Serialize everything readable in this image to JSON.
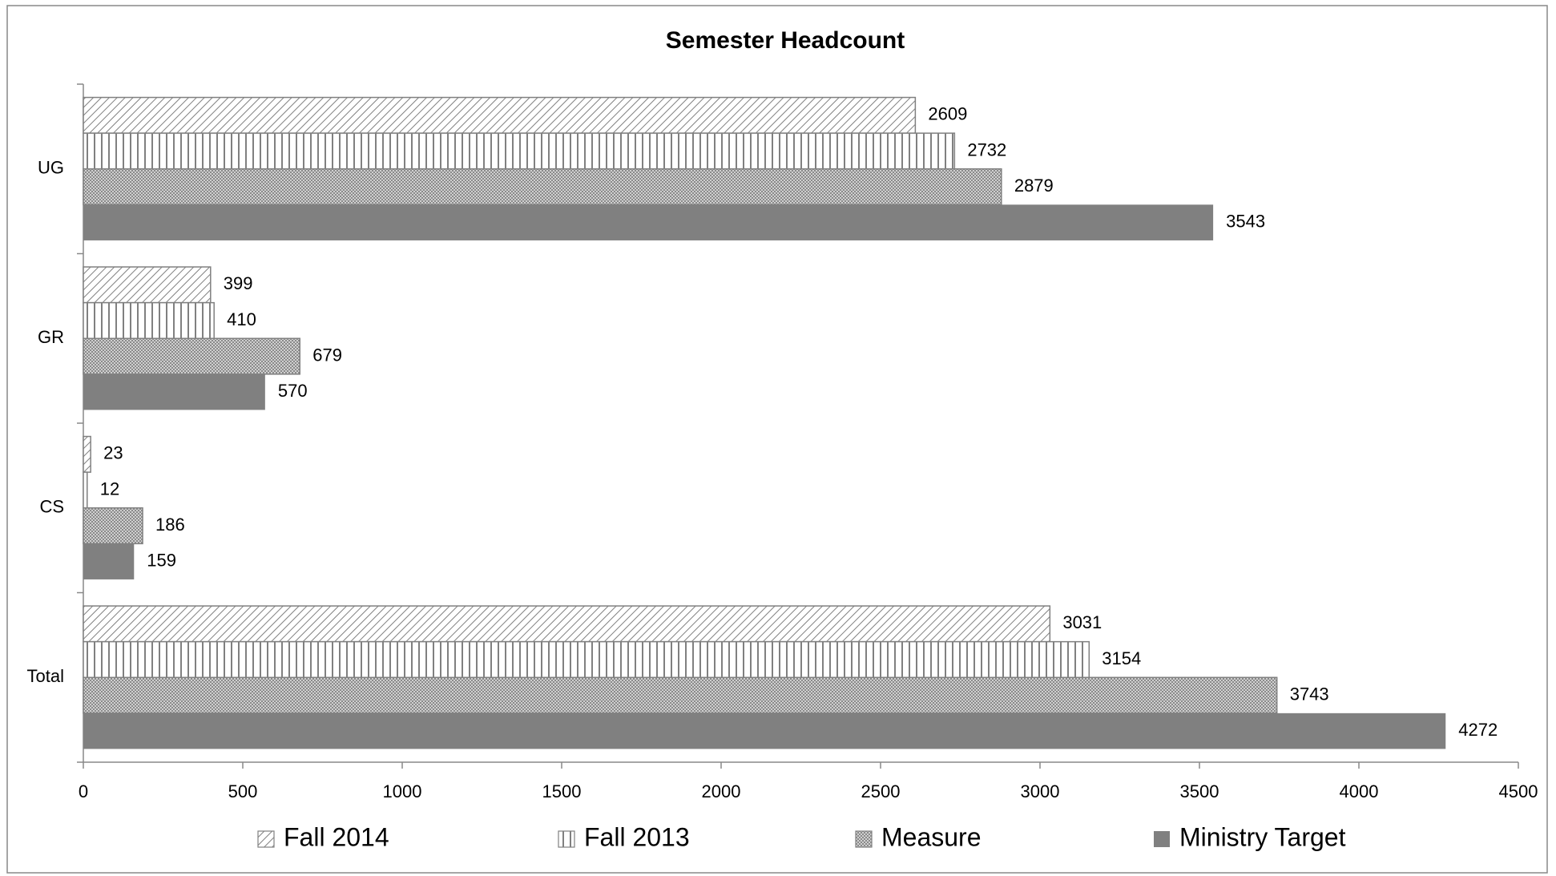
{
  "chart_data": {
    "type": "hbar",
    "title": "Semester Headcount",
    "categories": [
      "UG",
      "GR",
      "CS",
      "Total"
    ],
    "series": [
      {
        "name": "Fall 2014",
        "color": "#808080",
        "pattern": "diagonal",
        "values": [
          2609,
          399,
          23,
          3031
        ]
      },
      {
        "name": "Fall 2013",
        "color": "#808080",
        "pattern": "vertical",
        "values": [
          2732,
          410,
          12,
          3154
        ]
      },
      {
        "name": "Measure",
        "color": "#808080",
        "pattern": "crosshatch",
        "values": [
          2879,
          679,
          186,
          3743
        ]
      },
      {
        "name": "Ministry Target",
        "color": "#808080",
        "pattern": "solid",
        "values": [
          3543,
          570,
          159,
          4272
        ]
      }
    ],
    "xlim": [
      0,
      4500
    ],
    "xticks": [
      0,
      500,
      1000,
      1500,
      2000,
      2500,
      3000,
      3500,
      4000,
      4500
    ],
    "legend": "bottom",
    "grid": false
  }
}
